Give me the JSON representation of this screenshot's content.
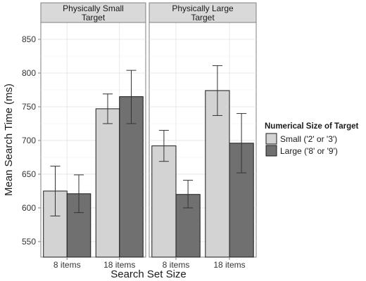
{
  "chart_data": {
    "type": "bar",
    "title": "",
    "xlabel": "Search Set Size",
    "ylabel": "Mean Search Time (ms)",
    "yticks": [
      550,
      600,
      650,
      700,
      750,
      800,
      850
    ],
    "ylim": [
      527,
      875
    ],
    "categories": [
      "8 items",
      "18 items"
    ],
    "grid": true,
    "legend": {
      "title": "Numerical Size of Target",
      "position": "right",
      "entries": [
        "Small ('2' or '3')",
        "Large ('8' or '9')"
      ]
    },
    "colors": {
      "small": "#d3d3d3",
      "large": "#707070",
      "panel_strip": "#d9d9d9"
    },
    "panels": [
      {
        "name": "Physically Small\nTarget",
        "series": [
          {
            "name": "Small ('2' or '3')",
            "values": [
              625,
              747
            ],
            "err_low": [
              588,
              725
            ],
            "err_high": [
              662,
              769
            ]
          },
          {
            "name": "Large ('8' or '9')",
            "values": [
              621,
              765
            ],
            "err_low": [
              593,
              725
            ],
            "err_high": [
              649,
              804
            ]
          }
        ]
      },
      {
        "name": "Physically Large\nTarget",
        "series": [
          {
            "name": "Small ('2' or '3')",
            "values": [
              692,
              774
            ],
            "err_low": [
              669,
              737
            ],
            "err_high": [
              715,
              811
            ]
          },
          {
            "name": "Large ('8' or '9')",
            "values": [
              620,
              696
            ],
            "err_low": [
              600,
              652
            ],
            "err_high": [
              641,
              740
            ]
          }
        ]
      }
    ]
  }
}
